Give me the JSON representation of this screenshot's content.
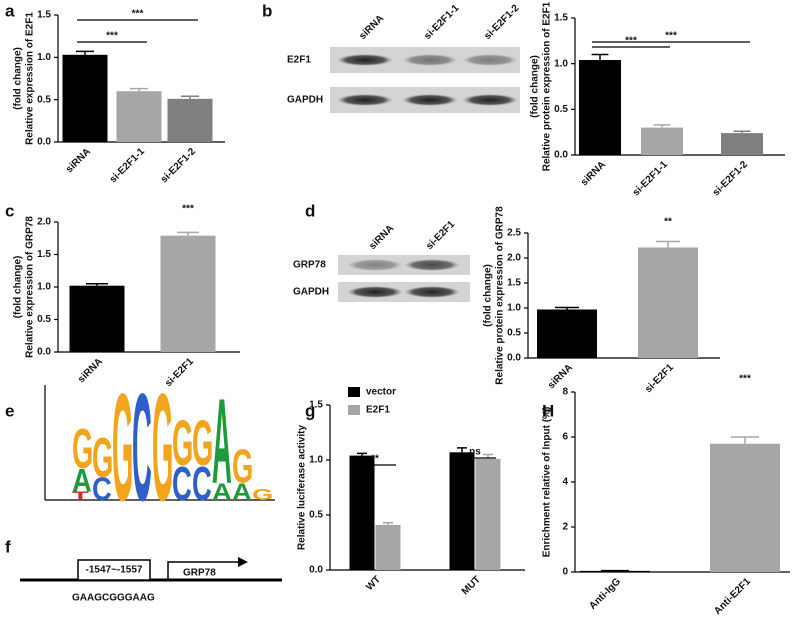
{
  "panel_labels": [
    "a",
    "b",
    "c",
    "d",
    "e",
    "f",
    "g",
    "H"
  ],
  "blots": [
    {
      "lanes": [
        "siRNA",
        "si-E2F1-1",
        "si-E2F1-2"
      ],
      "rows": [
        "E2F1",
        "GAPDH"
      ]
    },
    {
      "lanes": [
        "siRNA",
        "si-E2F1"
      ],
      "rows": [
        "GRP78",
        "GAPDH"
      ]
    }
  ],
  "motif": [
    {
      "letters": [],
      "heights": []
    },
    {
      "letters": [
        "G",
        "A",
        "T"
      ],
      "heights": [
        0.7,
        0.4,
        0.15
      ]
    },
    {
      "letters": [
        "G",
        "C"
      ],
      "heights": [
        0.7,
        0.4
      ]
    },
    {
      "letters": [
        "G"
      ],
      "heights": [
        1.9
      ]
    },
    {
      "letters": [
        "C"
      ],
      "heights": [
        1.9
      ]
    },
    {
      "letters": [
        "G"
      ],
      "heights": [
        1.9
      ]
    },
    {
      "letters": [
        "G",
        "C"
      ],
      "heights": [
        0.8,
        0.6
      ]
    },
    {
      "letters": [
        "G",
        "C"
      ],
      "heights": [
        0.8,
        0.6
      ]
    },
    {
      "letters": [
        "A",
        "A"
      ],
      "heights": [
        1.5,
        0.3
      ]
    },
    {
      "letters": [
        "G",
        "A"
      ],
      "heights": [
        0.6,
        0.3
      ]
    },
    {
      "letters": [
        "G"
      ],
      "heights": [
        0.2
      ]
    }
  ],
  "promoter": {
    "site": "-1547~-1557",
    "gene": "GRP78",
    "sequence": "GAAGCGGGAAG"
  },
  "chart_data": [
    {
      "type": "bar",
      "ylabel": [
        "Relative expression of E2F1",
        "(fold change)"
      ],
      "categories": [
        "siRNA",
        "si-E2F1-1",
        "si-E2F1-2"
      ],
      "values": [
        1.03,
        0.6,
        0.51
      ],
      "errors": [
        0.04,
        0.03,
        0.03
      ],
      "colors": [
        "#000000",
        "#a6a6a6",
        "#7f7f7f"
      ],
      "ylim": [
        0,
        1.5
      ],
      "yticks": [
        {
          "value": 0,
          "label": "0.0"
        },
        {
          "value": 0.5,
          "label": "0.5"
        },
        {
          "value": 1,
          "label": "1.0"
        },
        {
          "value": 1.5,
          "label": "1.5"
        }
      ],
      "annotations": [
        "***",
        "***"
      ]
    },
    {
      "type": "bar",
      "ylabel": [
        "Relative protein expression of E2F1",
        "(fold change)"
      ],
      "categories": [
        "siRNA",
        "si-E2F1-1",
        "si-E2F1-2"
      ],
      "values": [
        1.04,
        0.3,
        0.24
      ],
      "errors": [
        0.06,
        0.03,
        0.02
      ],
      "colors": [
        "#000000",
        "#a6a6a6",
        "#7f7f7f"
      ],
      "ylim": [
        0,
        1.5
      ],
      "yticks": [
        {
          "value": 0,
          "label": "0.0"
        },
        {
          "value": 0.5,
          "label": "0.5"
        },
        {
          "value": 1,
          "label": "1.0"
        },
        {
          "value": 1.5,
          "label": "1.5"
        }
      ],
      "annotations": [
        "***",
        "***"
      ]
    },
    {
      "type": "bar",
      "ylabel": [
        "Relative expression of GRP78",
        "(fold change)"
      ],
      "categories": [
        "siRNA",
        "si-E2F1"
      ],
      "values": [
        1.02,
        1.79
      ],
      "errors": [
        0.03,
        0.05
      ],
      "colors": [
        "#000000",
        "#a6a6a6"
      ],
      "ylim": [
        0,
        2
      ],
      "yticks": [
        {
          "value": 0,
          "label": "0.0"
        },
        {
          "value": 0.5,
          "label": "0.5"
        },
        {
          "value": 1,
          "label": "1.0"
        },
        {
          "value": 1.5,
          "label": "1.5"
        },
        {
          "value": 2,
          "label": "2.0"
        }
      ],
      "annotations": [
        "***"
      ]
    },
    {
      "type": "bar",
      "ylabel": [
        "Relative protein expression of GRP78",
        "(fold change)"
      ],
      "categories": [
        "siRNA",
        "si-E2F1"
      ],
      "values": [
        0.97,
        2.21
      ],
      "errors": [
        0.04,
        0.12
      ],
      "colors": [
        "#000000",
        "#a6a6a6"
      ],
      "ylim": [
        0,
        2.5
      ],
      "yticks": [
        {
          "value": 0,
          "label": "0.0"
        },
        {
          "value": 0.5,
          "label": "0.5"
        },
        {
          "value": 1,
          "label": "1.0"
        },
        {
          "value": 1.5,
          "label": "1.5"
        },
        {
          "value": 2,
          "label": "2.0"
        },
        {
          "value": 2.5,
          "label": "2.5"
        }
      ],
      "annotations": [
        "**"
      ]
    },
    {
      "type": "grouped-bar",
      "ylabel": [
        "Relative luciferase activity"
      ],
      "categories": [
        "WT",
        "MUT"
      ],
      "series": [
        {
          "name": "vector",
          "color": "#000000",
          "values": [
            1.04,
            1.07
          ],
          "errors": [
            0.02,
            0.04
          ]
        },
        {
          "name": "E2F1",
          "color": "#a6a6a6",
          "values": [
            0.41,
            1.01
          ],
          "errors": [
            0.02,
            0.04
          ]
        }
      ],
      "ylim": [
        0,
        1.5
      ],
      "legend": "top-left",
      "yticks": [
        {
          "value": 0,
          "label": "0.0"
        },
        {
          "value": 0.5,
          "label": "0.5"
        },
        {
          "value": 1,
          "label": "1.0"
        },
        {
          "value": 1.5,
          "label": "1.5"
        }
      ],
      "annotations": [
        "**",
        "ns"
      ]
    },
    {
      "type": "bar",
      "ylabel": [
        "Enrichment relative of Input (%)"
      ],
      "categories": [
        "Anti-IgG",
        "Anti-E2F1"
      ],
      "values": [
        0.05,
        5.7
      ],
      "errors": [
        0.01,
        0.3
      ],
      "colors": [
        "#000000",
        "#a6a6a6"
      ],
      "ylim": [
        0,
        8
      ],
      "yticks": [
        0,
        2,
        4,
        6,
        8
      ],
      "annotations": [
        "***"
      ]
    }
  ]
}
